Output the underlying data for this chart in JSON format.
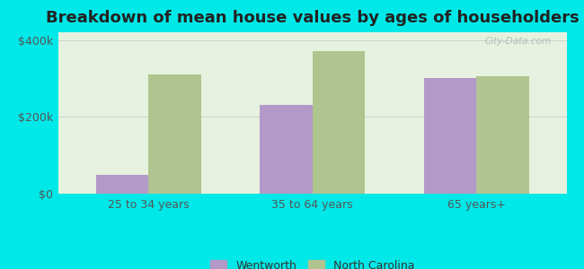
{
  "title": "Breakdown of mean house values by ages of householders",
  "categories": [
    "25 to 34 years",
    "35 to 64 years",
    "65 years+"
  ],
  "wentworth": [
    50000,
    230000,
    300000
  ],
  "north_carolina": [
    310000,
    370000,
    305000
  ],
  "wentworth_color": "#b399c8",
  "nc_color": "#b0c490",
  "background_color": "#e6f2df",
  "outer_background": "#00e8e8",
  "ylim": [
    0,
    420000
  ],
  "yticks": [
    0,
    200000,
    400000
  ],
  "ytick_labels": [
    "$0",
    "$200k",
    "$400k"
  ],
  "legend_wentworth": "Wentworth",
  "legend_nc": "North Carolina",
  "title_fontsize": 13,
  "bar_width": 0.32
}
